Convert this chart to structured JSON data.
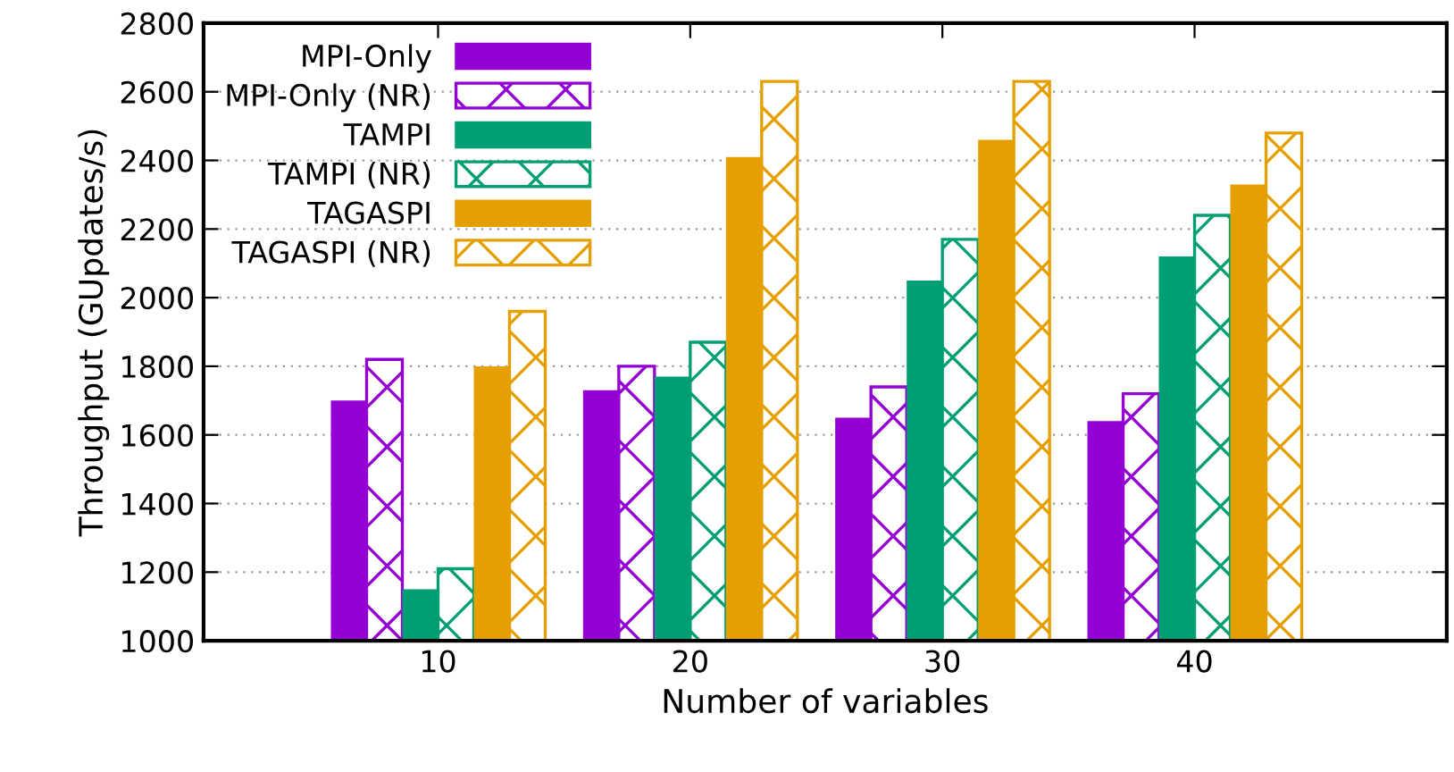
{
  "chart_data": {
    "type": "bar",
    "xlabel": "Number of variables",
    "ylabel": "Throughput (GUpdates/s)",
    "categories": [
      "10",
      "20",
      "30",
      "40"
    ],
    "series": [
      {
        "name": "MPI-Only",
        "color": "#9400d3",
        "values": [
          1700,
          1730,
          1650,
          1640
        ]
      },
      {
        "name": "MPI-Only (NR)",
        "color": "#9400d3",
        "values": [
          1820,
          1800,
          1740,
          1720
        ]
      },
      {
        "name": "TAMPI",
        "color": "#009e73",
        "values": [
          1150,
          1770,
          2050,
          2120
        ]
      },
      {
        "name": "TAMPI (NR)",
        "color": "#009e73",
        "values": [
          1210,
          1870,
          2170,
          2240
        ]
      },
      {
        "name": "TAGASPI",
        "color": "#e69f00",
        "values": [
          1800,
          2410,
          2460,
          2330
        ]
      },
      {
        "name": "TAGASPI (NR)",
        "color": "#e69f00",
        "values": [
          1960,
          2630,
          2630,
          2480
        ]
      }
    ],
    "ylim": [
      1000,
      2800
    ],
    "yticks": [
      1000,
      1200,
      1400,
      1600,
      1800,
      2000,
      2200,
      2400,
      2600,
      2800
    ],
    "grid": "y",
    "legend": "top left"
  }
}
